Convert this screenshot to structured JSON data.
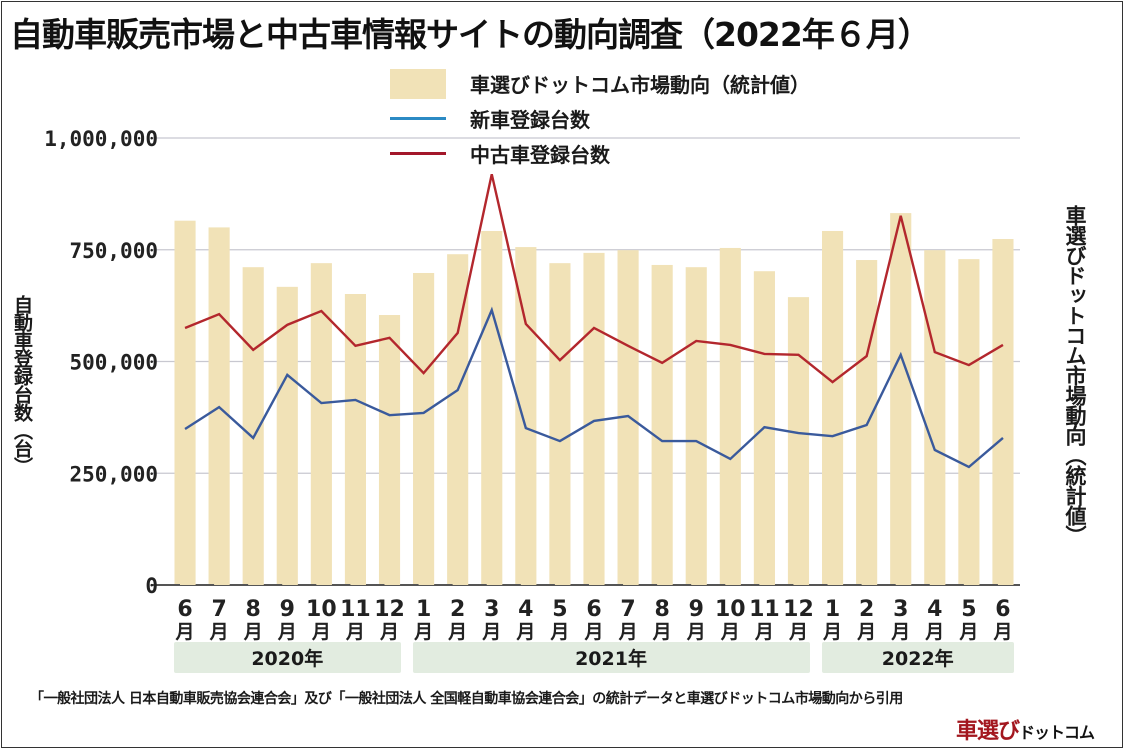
{
  "title": "自動車販売市場と中古車情報サイトの動向調査（2022年６月）",
  "legend": [
    {
      "label": "車選びドットコム市場動向（統計値）",
      "type": "bar",
      "color": "#f1e2b7"
    },
    {
      "label": "新車登録台数",
      "type": "line",
      "color": "#3a5a9c"
    },
    {
      "label": "中古車登録台数",
      "type": "line",
      "color": "#b3272d"
    }
  ],
  "left_axis_label": "自動車登録台数（台）",
  "right_axis_label": "車選びドットコム市場動向（統計値）",
  "years": [
    {
      "label": "2020年",
      "months": 7
    },
    {
      "label": "2021年",
      "months": 12
    },
    {
      "label": "2022年",
      "months": 6
    }
  ],
  "source": "「一般社団法人 日本自動車販売協会連合会」及び「一般社団法人 全国軽自動車協会連合会」の統計データと車選びドットコム市場動向から引用",
  "brand": {
    "red": "車選び",
    "black": "ドットコム"
  },
  "chart_data": {
    "type": "bar+line",
    "title": "自動車販売市場と中古車情報サイトの動向調査（2022年６月）",
    "xlabel": "",
    "ylabel": "自動車登録台数（台）",
    "y2label": "車選びドットコム市場動向（統計値）",
    "ylim": [
      0,
      1000000
    ],
    "yticks": [
      0,
      250000,
      500000,
      750000,
      1000000
    ],
    "ytick_labels": [
      "0",
      "250,000",
      "500,000",
      "750,000",
      "1,000,000"
    ],
    "grid": true,
    "legend_position": "top-center",
    "categories": [
      "6月",
      "7月",
      "8月",
      "9月",
      "10月",
      "11月",
      "12月",
      "1月",
      "2月",
      "3月",
      "4月",
      "5月",
      "6月",
      "7月",
      "8月",
      "9月",
      "10月",
      "11月",
      "12月",
      "1月",
      "2月",
      "3月",
      "4月",
      "5月",
      "6月"
    ],
    "category_nums": [
      "6",
      "7",
      "8",
      "9",
      "10",
      "11",
      "12",
      "1",
      "2",
      "3",
      "4",
      "5",
      "6",
      "7",
      "8",
      "9",
      "10",
      "11",
      "12",
      "1",
      "2",
      "3",
      "4",
      "5",
      "6"
    ],
    "month_suffix": "月",
    "series": [
      {
        "name": "車選びドットコム市場動向（統計値）",
        "type": "bar",
        "color": "#f1e2b7",
        "values": [
          815000,
          800000,
          711000,
          667000,
          720000,
          651000,
          604000,
          698000,
          740000,
          792000,
          756000,
          720000,
          743000,
          749000,
          716000,
          711000,
          754000,
          702000,
          644000,
          792000,
          727000,
          832000,
          749000,
          729000,
          774000
        ]
      },
      {
        "name": "新車登録台数",
        "type": "line",
        "color": "#3a5a9c",
        "values": [
          349000,
          398000,
          329000,
          470000,
          407000,
          414000,
          380000,
          385000,
          436000,
          615000,
          351000,
          322000,
          367000,
          378000,
          322000,
          322000,
          282000,
          353000,
          340000,
          333000,
          358000,
          515000,
          302000,
          264000,
          329000
        ]
      },
      {
        "name": "中古車登録台数",
        "type": "line",
        "color": "#b3272d",
        "values": [
          575000,
          606000,
          526000,
          582000,
          613000,
          535000,
          553000,
          474000,
          564000,
          919000,
          584000,
          503000,
          575000,
          535000,
          497000,
          546000,
          537000,
          517000,
          515000,
          454000,
          512000,
          826000,
          521000,
          492000,
          537000
        ]
      }
    ]
  }
}
